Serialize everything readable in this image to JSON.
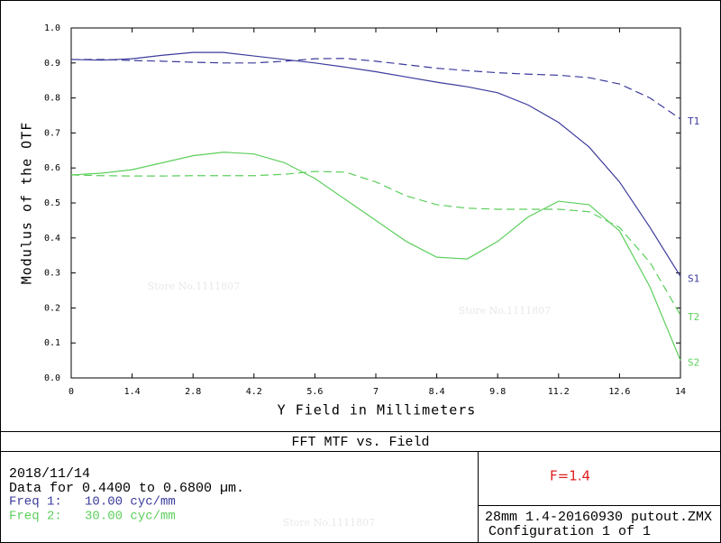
{
  "chart_data": {
    "type": "line",
    "x_label": "Y Field in Millimeters",
    "y_label": "Modulus of the OTF",
    "x": [
      0,
      0.7,
      1.4,
      2.1,
      2.8,
      3.5,
      4.2,
      4.9,
      5.6,
      6.3,
      7,
      7.7,
      8.4,
      9.1,
      9.8,
      10.5,
      11.2,
      11.9,
      12.6,
      13.3,
      14
    ],
    "series": [
      {
        "name": "T1",
        "color": "#3b3b9c",
        "style": "dashed",
        "values": [
          0.91,
          0.91,
          0.907,
          0.905,
          0.902,
          0.9,
          0.9,
          0.905,
          0.912,
          0.913,
          0.905,
          0.895,
          0.885,
          0.878,
          0.872,
          0.868,
          0.865,
          0.858,
          0.84,
          0.8,
          0.74
        ]
      },
      {
        "name": "S1",
        "color": "#3b3b9c",
        "style": "solid",
        "values": [
          0.91,
          0.908,
          0.912,
          0.922,
          0.93,
          0.93,
          0.92,
          0.91,
          0.9,
          0.888,
          0.875,
          0.86,
          0.845,
          0.832,
          0.815,
          0.78,
          0.73,
          0.66,
          0.56,
          0.43,
          0.29
        ]
      },
      {
        "name": "T2",
        "color": "#5ccf5c",
        "style": "dashed",
        "values": [
          0.58,
          0.578,
          0.577,
          0.577,
          0.578,
          0.578,
          0.578,
          0.582,
          0.59,
          0.588,
          0.56,
          0.52,
          0.495,
          0.485,
          0.482,
          0.482,
          0.482,
          0.475,
          0.43,
          0.33,
          0.18
        ]
      },
      {
        "name": "S2",
        "color": "#5ccf5c",
        "style": "solid",
        "values": [
          0.58,
          0.585,
          0.595,
          0.615,
          0.635,
          0.645,
          0.64,
          0.615,
          0.57,
          0.51,
          0.45,
          0.39,
          0.345,
          0.34,
          0.39,
          0.46,
          0.505,
          0.495,
          0.42,
          0.26,
          0.05
        ]
      }
    ],
    "xlim": [
      0,
      14
    ],
    "xticks": [
      0,
      1.4,
      2.8,
      4.2,
      5.6,
      7,
      8.4,
      9.8,
      11.2,
      12.6,
      14
    ],
    "ylim": [
      0,
      1
    ],
    "yticks": [
      {
        "value": 0,
        "label": "0.0"
      },
      {
        "value": 0.1,
        "label": "0.1"
      },
      {
        "value": 0.2,
        "label": "0.2"
      },
      {
        "value": 0.3,
        "label": "0.3"
      },
      {
        "value": 0.4,
        "label": "0.4"
      },
      {
        "value": 0.5,
        "label": "0.5"
      },
      {
        "value": 0.6,
        "label": "0.6"
      },
      {
        "value": 0.7,
        "label": "0.7"
      },
      {
        "value": 0.8,
        "label": "0.8"
      },
      {
        "value": 0.9,
        "label": "0.9"
      },
      {
        "value": 1,
        "label": "1.0"
      }
    ],
    "grid": false
  },
  "info": {
    "title": "FFT MTF vs. Field",
    "date": "2018/11/14",
    "data_range": "Data for 0.4400 to 0.6800 µm.",
    "freq1": "Freq 1:   10.00 cyc/mm",
    "freq2": "Freq 2:   30.00 cyc/mm",
    "fnumber": "F=1.4",
    "file": "28mm 1.4-20160930 putout.ZMX",
    "config": "Configuration 1 of 1"
  },
  "watermarks": [
    "Store No.1111807",
    "Store No.1111807",
    "Store No.1111807"
  ]
}
